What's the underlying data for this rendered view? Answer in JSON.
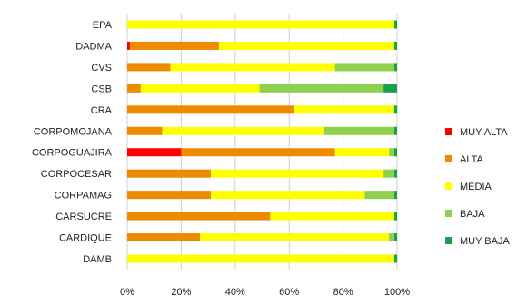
{
  "chart_data": {
    "type": "bar",
    "orientation": "horizontal",
    "stacked": true,
    "normalized": true,
    "categories": [
      "EPA",
      "DADMA",
      "CVS",
      "CSB",
      "CRA",
      "CORPOMOJANA",
      "CORPOGUAJIRA",
      "CORPOCESAR",
      "CORPAMAG",
      "CARSUCRE",
      "CARDIQUE",
      "DAMB"
    ],
    "series": [
      {
        "name": "MUY ALTA",
        "color": "#ff0000",
        "values": [
          0,
          1,
          0,
          0,
          0,
          0,
          20,
          0,
          0,
          0,
          0,
          0
        ]
      },
      {
        "name": "ALTA",
        "color": "#ed8b00",
        "values": [
          0,
          33,
          16,
          5,
          62,
          13,
          57,
          31,
          31,
          53,
          27,
          0
        ]
      },
      {
        "name": "MEDIA",
        "color": "#ffff00",
        "values": [
          99,
          65,
          61,
          44,
          37,
          60,
          20,
          64,
          57,
          46,
          70,
          99
        ]
      },
      {
        "name": "BAJA",
        "color": "#8fd14f",
        "values": [
          0,
          0,
          22,
          46,
          0,
          26,
          2,
          4,
          11,
          0,
          2,
          0
        ]
      },
      {
        "name": "MUY BAJA",
        "color": "#19a04a",
        "values": [
          1,
          1,
          1,
          5,
          1,
          1,
          1,
          1,
          1,
          1,
          1,
          1
        ]
      }
    ],
    "x_ticks": [
      "0%",
      "20%",
      "40%",
      "60%",
      "80%",
      "100%"
    ],
    "xlim": [
      0,
      100
    ],
    "grid": "vertical",
    "legend_position": "right"
  }
}
